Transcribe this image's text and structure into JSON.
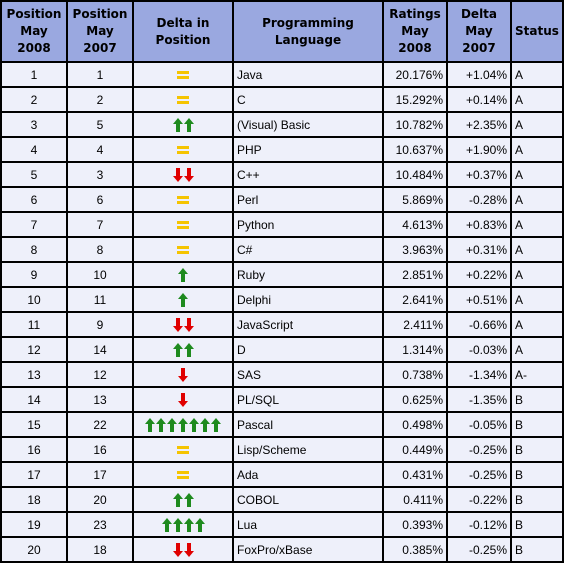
{
  "headers": {
    "pos2008": "Position\nMay 2008",
    "pos2007": "Position\nMay 2007",
    "delta_pos": "Delta in Position",
    "language": "Programming Language",
    "ratings": "Ratings\nMay 2008",
    "delta": "Delta\nMay 2007",
    "status": "Status"
  },
  "rows": [
    {
      "pos2008": "1",
      "pos2007": "1",
      "change": "same",
      "arrows": 0,
      "language": "Java",
      "ratings": "20.176%",
      "delta": "+1.04%",
      "status": "A"
    },
    {
      "pos2008": "2",
      "pos2007": "2",
      "change": "same",
      "arrows": 0,
      "language": "C",
      "ratings": "15.292%",
      "delta": "+0.14%",
      "status": "A"
    },
    {
      "pos2008": "3",
      "pos2007": "5",
      "change": "up",
      "arrows": 2,
      "language": "(Visual) Basic",
      "ratings": "10.782%",
      "delta": "+2.35%",
      "status": "A"
    },
    {
      "pos2008": "4",
      "pos2007": "4",
      "change": "same",
      "arrows": 0,
      "language": "PHP",
      "ratings": "10.637%",
      "delta": "+1.90%",
      "status": "A"
    },
    {
      "pos2008": "5",
      "pos2007": "3",
      "change": "down",
      "arrows": 2,
      "language": "C++",
      "ratings": "10.484%",
      "delta": "+0.37%",
      "status": "A"
    },
    {
      "pos2008": "6",
      "pos2007": "6",
      "change": "same",
      "arrows": 0,
      "language": "Perl",
      "ratings": "5.869%",
      "delta": "-0.28%",
      "status": "A"
    },
    {
      "pos2008": "7",
      "pos2007": "7",
      "change": "same",
      "arrows": 0,
      "language": "Python",
      "ratings": "4.613%",
      "delta": "+0.83%",
      "status": "A"
    },
    {
      "pos2008": "8",
      "pos2007": "8",
      "change": "same",
      "arrows": 0,
      "language": "C#",
      "ratings": "3.963%",
      "delta": "+0.31%",
      "status": "A"
    },
    {
      "pos2008": "9",
      "pos2007": "10",
      "change": "up",
      "arrows": 1,
      "language": "Ruby",
      "ratings": "2.851%",
      "delta": "+0.22%",
      "status": "A"
    },
    {
      "pos2008": "10",
      "pos2007": "11",
      "change": "up",
      "arrows": 1,
      "language": "Delphi",
      "ratings": "2.641%",
      "delta": "+0.51%",
      "status": "A"
    },
    {
      "pos2008": "11",
      "pos2007": "9",
      "change": "down",
      "arrows": 2,
      "language": "JavaScript",
      "ratings": "2.411%",
      "delta": "-0.66%",
      "status": "A"
    },
    {
      "pos2008": "12",
      "pos2007": "14",
      "change": "up",
      "arrows": 2,
      "language": "D",
      "ratings": "1.314%",
      "delta": "-0.03%",
      "status": "A"
    },
    {
      "pos2008": "13",
      "pos2007": "12",
      "change": "down",
      "arrows": 1,
      "language": "SAS",
      "ratings": "0.738%",
      "delta": "-1.34%",
      "status": "A-"
    },
    {
      "pos2008": "14",
      "pos2007": "13",
      "change": "down",
      "arrows": 1,
      "language": "PL/SQL",
      "ratings": "0.625%",
      "delta": "-1.35%",
      "status": "B"
    },
    {
      "pos2008": "15",
      "pos2007": "22",
      "change": "up",
      "arrows": 7,
      "language": "Pascal",
      "ratings": "0.498%",
      "delta": "-0.05%",
      "status": "B"
    },
    {
      "pos2008": "16",
      "pos2007": "16",
      "change": "same",
      "arrows": 0,
      "language": "Lisp/Scheme",
      "ratings": "0.449%",
      "delta": "-0.25%",
      "status": "B"
    },
    {
      "pos2008": "17",
      "pos2007": "17",
      "change": "same",
      "arrows": 0,
      "language": "Ada",
      "ratings": "0.431%",
      "delta": "-0.25%",
      "status": "B"
    },
    {
      "pos2008": "18",
      "pos2007": "20",
      "change": "up",
      "arrows": 2,
      "language": "COBOL",
      "ratings": "0.411%",
      "delta": "-0.22%",
      "status": "B"
    },
    {
      "pos2008": "19",
      "pos2007": "23",
      "change": "up",
      "arrows": 4,
      "language": "Lua",
      "ratings": "0.393%",
      "delta": "-0.12%",
      "status": "B"
    },
    {
      "pos2008": "20",
      "pos2007": "18",
      "change": "down",
      "arrows": 2,
      "language": "FoxPro/xBase",
      "ratings": "0.385%",
      "delta": "-0.25%",
      "status": "B"
    }
  ],
  "colors": {
    "header_bg": "#9aa8e0",
    "cell_bg": "#eef0fa",
    "grid": "#000000",
    "link": "#1a2d8a",
    "up_arrow": "#1e8a1e",
    "down_arrow": "#e00000",
    "equal": "#f5c400"
  },
  "icons": {
    "same": "equal-icon",
    "up": "green-up-arrow-icon",
    "down": "red-down-arrow-icon"
  }
}
